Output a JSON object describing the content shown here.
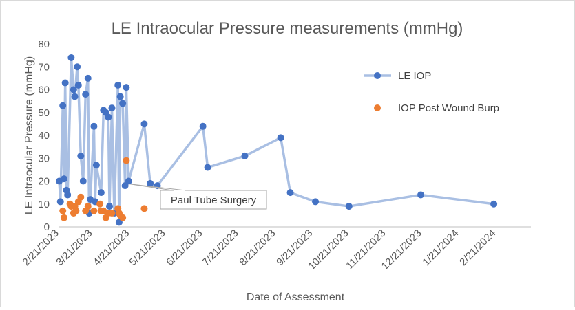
{
  "chart_data": {
    "type": "line",
    "title": "LE Intraocular Pressure measurements (mmHg)",
    "xlabel": "Date of Assessment",
    "ylabel": "LE Intraocular Pressure (mmHg)",
    "ylim": [
      0,
      80
    ],
    "xlim": [
      "2023-02-21",
      "2024-03-21"
    ],
    "yticks": [
      "0",
      "10",
      "20",
      "30",
      "40",
      "50",
      "60",
      "70",
      "80"
    ],
    "xticks": [
      {
        "date": "2023-02-21",
        "label": "2/21/2023"
      },
      {
        "date": "2023-03-21",
        "label": "3/21/2023"
      },
      {
        "date": "2023-04-21",
        "label": "4/21/2023"
      },
      {
        "date": "2023-05-21",
        "label": "5/21/2023"
      },
      {
        "date": "2023-06-21",
        "label": "6/21/2023"
      },
      {
        "date": "2023-07-21",
        "label": "7/21/2023"
      },
      {
        "date": "2023-08-21",
        "label": "8/21/2023"
      },
      {
        "date": "2023-09-21",
        "label": "9/21/2023"
      },
      {
        "date": "2023-10-21",
        "label": "10/21/2023"
      },
      {
        "date": "2023-11-21",
        "label": "11/21/2023"
      },
      {
        "date": "2023-12-21",
        "label": "12/21/2023"
      },
      {
        "date": "2024-01-21",
        "label": "1/21/2024"
      },
      {
        "date": "2024-02-21",
        "label": "2/21/2024"
      }
    ],
    "grid": false,
    "legend_position": "right",
    "series": [
      {
        "name": "LE IOP",
        "style": "line-marker",
        "color": "#4472c4",
        "line_color": "#a9bfe3",
        "points": [
          [
            "2023-02-21",
            20
          ],
          [
            "2023-02-22",
            11
          ],
          [
            "2023-02-24",
            53
          ],
          [
            "2023-02-25",
            21
          ],
          [
            "2023-02-26",
            63
          ],
          [
            "2023-02-27",
            16
          ],
          [
            "2023-02-28",
            14
          ],
          [
            "2023-03-03",
            74
          ],
          [
            "2023-03-05",
            60
          ],
          [
            "2023-03-06",
            57
          ],
          [
            "2023-03-08",
            70
          ],
          [
            "2023-03-09",
            62
          ],
          [
            "2023-03-11",
            31
          ],
          [
            "2023-03-13",
            20
          ],
          [
            "2023-03-15",
            58
          ],
          [
            "2023-03-17",
            65
          ],
          [
            "2023-03-18",
            6
          ],
          [
            "2023-03-19",
            12
          ],
          [
            "2023-03-22",
            44
          ],
          [
            "2023-03-23",
            11
          ],
          [
            "2023-03-24",
            27
          ],
          [
            "2023-03-28",
            15
          ],
          [
            "2023-03-30",
            51
          ],
          [
            "2023-04-01",
            50
          ],
          [
            "2023-04-03",
            48
          ],
          [
            "2023-04-04",
            9
          ],
          [
            "2023-04-06",
            52
          ],
          [
            "2023-04-08",
            6
          ],
          [
            "2023-04-11",
            62
          ],
          [
            "2023-04-12",
            2
          ],
          [
            "2023-04-13",
            57
          ],
          [
            "2023-04-15",
            54
          ],
          [
            "2023-04-17",
            18
          ],
          [
            "2023-04-18",
            61
          ],
          [
            "2023-04-20",
            20
          ],
          [
            "2023-05-03",
            45
          ],
          [
            "2023-05-08",
            19
          ],
          [
            "2023-05-14",
            18
          ],
          [
            "2023-06-21",
            44
          ],
          [
            "2023-06-25",
            26
          ],
          [
            "2023-07-26",
            31
          ],
          [
            "2023-08-25",
            39
          ],
          [
            "2023-09-02",
            15
          ],
          [
            "2023-09-23",
            11
          ],
          [
            "2023-10-21",
            9
          ],
          [
            "2023-12-20",
            14
          ],
          [
            "2024-02-19",
            10
          ]
        ]
      },
      {
        "name": "IOP Post Wound Burp",
        "style": "marker",
        "color": "#ed7d31",
        "points": [
          [
            "2023-02-24",
            7
          ],
          [
            "2023-02-25",
            4
          ],
          [
            "2023-03-02",
            10
          ],
          [
            "2023-03-03",
            9
          ],
          [
            "2023-03-05",
            6
          ],
          [
            "2023-03-06",
            9
          ],
          [
            "2023-03-07",
            7
          ],
          [
            "2023-03-09",
            11
          ],
          [
            "2023-03-11",
            13
          ],
          [
            "2023-03-15",
            7
          ],
          [
            "2023-03-17",
            9
          ],
          [
            "2023-03-22",
            7
          ],
          [
            "2023-03-27",
            10
          ],
          [
            "2023-03-28",
            7
          ],
          [
            "2023-03-30",
            7
          ],
          [
            "2023-04-01",
            4
          ],
          [
            "2023-04-03",
            6
          ],
          [
            "2023-04-06",
            6
          ],
          [
            "2023-04-11",
            8
          ],
          [
            "2023-04-12",
            6
          ],
          [
            "2023-04-13",
            5
          ],
          [
            "2023-04-15",
            4
          ],
          [
            "2023-04-18",
            29
          ],
          [
            "2023-05-03",
            8
          ]
        ]
      }
    ],
    "annotations": [
      {
        "text": "Paul Tube Surgery",
        "date": "2023-04-20",
        "value": 20
      }
    ]
  }
}
